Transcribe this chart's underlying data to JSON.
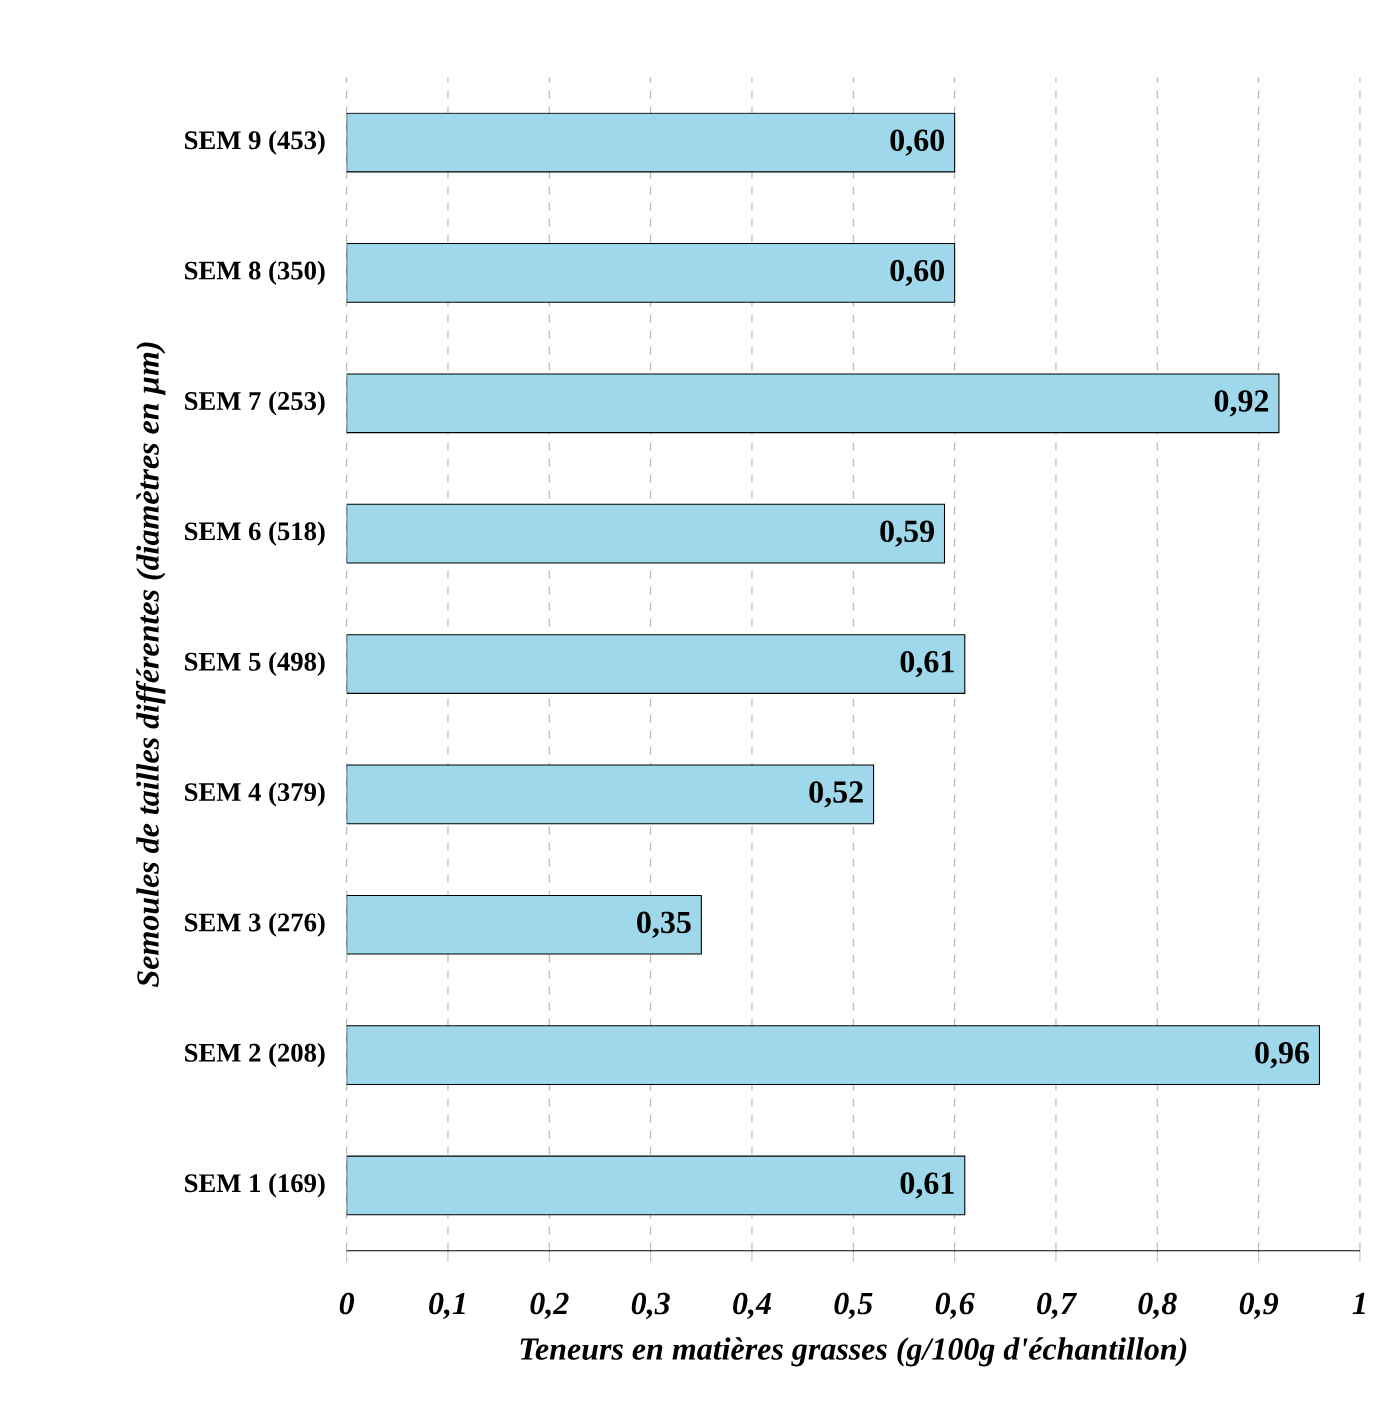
{
  "chart_data": {
    "type": "bar",
    "orientation": "horizontal",
    "categories": [
      "SEM 9 (453)",
      "SEM 8 (350)",
      "SEM 7 (253)",
      "SEM 6 (518)",
      "SEM 5 (498)",
      "SEM 4 (379)",
      "SEM 3 (276)",
      "SEM 2 (208)",
      "SEM 1 (169)"
    ],
    "values": [
      0.6,
      0.6,
      0.92,
      0.59,
      0.61,
      0.52,
      0.35,
      0.96,
      0.61
    ],
    "value_labels": [
      "0,60",
      "0,60",
      "0,92",
      "0,59",
      "0,61",
      "0,52",
      "0,35",
      "0,96",
      "0,61"
    ],
    "color": "#9fd8ea",
    "xlim": [
      0,
      1
    ],
    "xticks": [
      0,
      {
        "value": 0.1,
        "label": "0,1"
      },
      {
        "value": 0.2,
        "label": "0,2"
      },
      {
        "value": 0.3,
        "label": "0,3"
      },
      {
        "value": 0.4,
        "label": "0,4"
      },
      {
        "value": 0.5,
        "label": "0,5"
      },
      {
        "value": 0.6,
        "label": "0,6"
      },
      {
        "value": 0.7,
        "label": "0,7"
      },
      {
        "value": 0.8,
        "label": "0,8"
      },
      {
        "value": 0.9,
        "label": "0,9"
      },
      1
    ],
    "xlabel": "Teneurs en matières grasses (g/100g d'échantillon)",
    "ylabel": "Semoules de tailles différentes (diamètres en µm)",
    "grid": "x"
  }
}
